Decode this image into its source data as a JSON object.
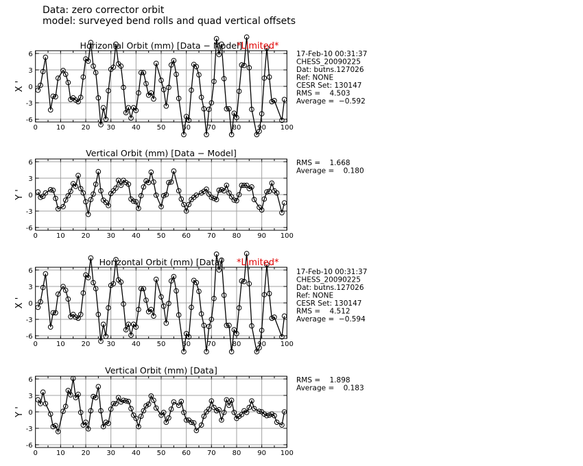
{
  "header": {
    "line1": "Data: zero corrector orbit",
    "line2": "model: surveyed bend rolls and quad vertical offsets"
  },
  "colors": {
    "line": "#000000",
    "grid": "#a0a0a0",
    "limited": "#e00000"
  },
  "chart_data": [
    {
      "type": "line",
      "title": "Horizontal Orbit (mm) [Data − Model]",
      "flag": "*Limited*",
      "ylabel": "X '",
      "xlim": [
        0,
        100
      ],
      "ylim": [
        -6.5,
        6.5
      ],
      "xticks": [
        "0",
        "10",
        "20",
        "30",
        "40",
        "50",
        "60",
        "70",
        "80",
        "90",
        "100"
      ],
      "yticks": [
        "-6",
        "-3",
        "0",
        "3",
        "6"
      ],
      "grid": true,
      "info": [
        "17-Feb-10 00:31:37",
        "CHESS_20090225",
        "Dat: butns.127026",
        "Ref: NONE",
        "CESR Set: 130147",
        "RMS =    4.503",
        "Average =  −0.592"
      ],
      "x": [
        1,
        2,
        3,
        4,
        6,
        7,
        8,
        9,
        11,
        12,
        13,
        14,
        15,
        16,
        17,
        18,
        19,
        20,
        21,
        22,
        23,
        24,
        25,
        26,
        27,
        28,
        29,
        30,
        31,
        32,
        33,
        34,
        35,
        36,
        37,
        38,
        39,
        40,
        41,
        42,
        43,
        44,
        45,
        46,
        47,
        48,
        50,
        51,
        52,
        53,
        54,
        55,
        56,
        57,
        59,
        60,
        61,
        62,
        63,
        64,
        65,
        66,
        67,
        68,
        69,
        70,
        71,
        72,
        73,
        74,
        75,
        76,
        77,
        78,
        79,
        80,
        81,
        82,
        83,
        84,
        85,
        86,
        88,
        89,
        90,
        91,
        92,
        93,
        94,
        95,
        98,
        99
      ],
      "y": [
        -0.7,
        0.2,
        2.7,
        5.3,
        -4.3,
        -1.8,
        -1.9,
        1.5,
        2.9,
        2.2,
        0.7,
        -2.4,
        -2.1,
        -2.5,
        -2.8,
        -2.0,
        1.7,
        5.0,
        4.6,
        8.0,
        3.7,
        2.5,
        -2.1,
        -7.0,
        -3.9,
        -6.0,
        -0.8,
        3.1,
        3.5,
        7.7,
        4.1,
        3.7,
        -0.2,
        -4.8,
        -3.9,
        -5.8,
        -3.9,
        -4.4,
        -1.2,
        2.5,
        2.5,
        0.5,
        -1.6,
        -1.2,
        -2.3,
        4.2,
        1.1,
        -0.6,
        -3.6,
        -0.2,
        3.9,
        4.7,
        2.2,
        -2.2,
        -8.8,
        -5.5,
        -6.2,
        -0.7,
        4.0,
        3.6,
        2.1,
        -2.0,
        -4.1,
        -8.8,
        -4.2,
        -3.0,
        0.9,
        8.7,
        5.8,
        7.7,
        1.4,
        -4.1,
        -4.1,
        -8.8,
        -4.9,
        -5.7,
        -0.9,
        3.9,
        3.8,
        9.0,
        3.4,
        -4.2,
        -8.8,
        -8.2,
        -5.0,
        1.5,
        7.0,
        1.7,
        -2.8,
        -2.6,
        -6.2,
        -2.4
      ]
    },
    {
      "type": "line",
      "title": "Vertical Orbit (mm) [Data − Model]",
      "flag": "",
      "ylabel": "Y '",
      "xlim": [
        0,
        100
      ],
      "ylim": [
        -6.5,
        6.5
      ],
      "xticks": [
        "0",
        "10",
        "20",
        "30",
        "40",
        "50",
        "60",
        "70",
        "80",
        "90",
        "100"
      ],
      "yticks": [
        "-6",
        "-3",
        "0",
        "3",
        "6"
      ],
      "grid": true,
      "info": [
        "RMS =    1.668",
        "Average =    0.180"
      ],
      "x": [
        1,
        2,
        3,
        4,
        6,
        7,
        8,
        9,
        11,
        12,
        13,
        14,
        15,
        16,
        17,
        18,
        19,
        20,
        21,
        22,
        23,
        24,
        25,
        26,
        27,
        28,
        29,
        30,
        31,
        32,
        33,
        34,
        35,
        36,
        37,
        38,
        39,
        40,
        41,
        42,
        43,
        44,
        45,
        46,
        47,
        48,
        50,
        51,
        52,
        53,
        54,
        55,
        57,
        58,
        59,
        60,
        61,
        62,
        63,
        64,
        66,
        67,
        68,
        69,
        70,
        71,
        72,
        73,
        74,
        75,
        76,
        77,
        78,
        79,
        80,
        81,
        82,
        83,
        84,
        85,
        86,
        87,
        89,
        90,
        91,
        92,
        93,
        94,
        95,
        96,
        98,
        99
      ],
      "y": [
        0.5,
        -0.5,
        -0.3,
        0.3,
        0.9,
        0.8,
        -0.7,
        -2.6,
        -2.2,
        -1.0,
        -0.2,
        0.6,
        2.0,
        1.5,
        3.5,
        1.1,
        0.3,
        -1.3,
        -3.6,
        -0.9,
        0.1,
        1.9,
        4.2,
        0.7,
        -1.0,
        -1.4,
        -2.0,
        0.2,
        0.7,
        1.2,
        2.6,
        1.7,
        2.6,
        2.2,
        1.9,
        -0.8,
        -1.2,
        -1.3,
        -2.5,
        -0.2,
        1.4,
        2.5,
        2.2,
        4.1,
        2.3,
        -0.1,
        -2.2,
        -0.2,
        0.0,
        2.2,
        2.3,
        4.3,
        0.7,
        -0.8,
        -1.8,
        -3.0,
        -1.8,
        -0.9,
        -0.5,
        -0.1,
        0.3,
        0.6,
        1.0,
        0.1,
        -0.5,
        -0.7,
        -0.9,
        0.8,
        0.9,
        0.7,
        1.7,
        0.3,
        -0.4,
        -1.0,
        -1.1,
        0.0,
        1.7,
        1.7,
        1.7,
        1.1,
        1.4,
        -0.9,
        -2.3,
        -2.8,
        -0.8,
        0.5,
        0.6,
        2.1,
        0.7,
        0.3,
        -3.3,
        -1.5
      ]
    },
    {
      "type": "line",
      "title": "Horizontal Orbit (mm) [Data]",
      "flag": "*Limited*",
      "ylabel": "X '",
      "xlim": [
        0,
        100
      ],
      "ylim": [
        -6.5,
        6.5
      ],
      "xticks": [
        "0",
        "10",
        "20",
        "30",
        "40",
        "50",
        "60",
        "70",
        "80",
        "90",
        "100"
      ],
      "yticks": [
        "-6",
        "-3",
        "0",
        "3",
        "6"
      ],
      "grid": true,
      "info": [
        "17-Feb-10 00:31:37",
        "CHESS_20090225",
        "Dat: butns.127026",
        "Ref: NONE",
        "CESR Set: 130147",
        "RMS =    4.512",
        "Average =  −0.594"
      ],
      "x": [
        1,
        2,
        3,
        4,
        6,
        7,
        8,
        9,
        11,
        12,
        13,
        14,
        15,
        16,
        17,
        18,
        19,
        20,
        21,
        22,
        23,
        24,
        25,
        26,
        27,
        28,
        29,
        30,
        31,
        32,
        33,
        34,
        35,
        36,
        37,
        38,
        39,
        40,
        41,
        42,
        43,
        44,
        45,
        46,
        47,
        48,
        50,
        51,
        52,
        53,
        54,
        55,
        56,
        57,
        59,
        60,
        61,
        62,
        63,
        64,
        65,
        66,
        67,
        68,
        69,
        70,
        71,
        72,
        73,
        74,
        75,
        76,
        77,
        78,
        79,
        80,
        81,
        82,
        83,
        84,
        85,
        86,
        88,
        89,
        90,
        91,
        92,
        93,
        94,
        95,
        98,
        99
      ],
      "y": [
        -0.8,
        0.2,
        2.8,
        5.3,
        -4.4,
        -1.8,
        -1.8,
        1.6,
        3.0,
        2.3,
        0.7,
        -2.5,
        -2.1,
        -2.6,
        -2.8,
        -2.1,
        1.8,
        5.1,
        4.6,
        8.2,
        3.7,
        2.6,
        -2.1,
        -7.0,
        -3.9,
        -6.1,
        -0.9,
        3.2,
        3.5,
        7.9,
        4.2,
        3.8,
        -0.2,
        -4.9,
        -3.9,
        -5.9,
        -3.9,
        -4.4,
        -1.2,
        2.6,
        2.6,
        0.5,
        -1.6,
        -1.2,
        -2.4,
        4.3,
        1.1,
        -0.6,
        -3.7,
        -0.1,
        4.0,
        4.8,
        2.2,
        -2.2,
        -8.9,
        -5.6,
        -6.2,
        -0.8,
        4.1,
        3.7,
        2.1,
        -2.0,
        -4.1,
        -8.9,
        -4.3,
        -3.0,
        0.8,
        8.9,
        6.0,
        7.8,
        1.4,
        -4.1,
        -4.1,
        -8.9,
        -4.9,
        -5.6,
        -0.9,
        4.0,
        3.9,
        9.0,
        3.5,
        -4.2,
        -8.9,
        -8.2,
        -5.0,
        1.5,
        7.0,
        1.7,
        -2.8,
        -2.6,
        -6.2,
        -2.4
      ]
    },
    {
      "type": "line",
      "title": "Vertical Orbit (mm) [Data]",
      "flag": "",
      "ylabel": "Y '",
      "xlim": [
        0,
        100
      ],
      "ylim": [
        -6.5,
        6.5
      ],
      "xticks": [
        "0",
        "10",
        "20",
        "30",
        "40",
        "50",
        "60",
        "70",
        "80",
        "90",
        "100"
      ],
      "yticks": [
        "-6",
        "-3",
        "0",
        "3",
        "6"
      ],
      "grid": true,
      "info": [
        "RMS =    1.898",
        "Average =    0.183"
      ],
      "x": [
        1,
        2,
        3,
        4,
        6,
        7,
        8,
        9,
        11,
        12,
        13,
        14,
        15,
        16,
        17,
        18,
        19,
        20,
        21,
        22,
        23,
        24,
        25,
        26,
        27,
        28,
        29,
        30,
        31,
        32,
        33,
        34,
        35,
        36,
        37,
        38,
        39,
        40,
        41,
        42,
        43,
        44,
        45,
        46,
        47,
        48,
        50,
        51,
        52,
        53,
        54,
        55,
        57,
        58,
        59,
        60,
        61,
        62,
        63,
        64,
        66,
        67,
        68,
        69,
        70,
        71,
        72,
        73,
        74,
        75,
        76,
        77,
        78,
        79,
        80,
        81,
        82,
        83,
        84,
        85,
        86,
        87,
        89,
        90,
        91,
        92,
        93,
        94,
        95,
        96,
        98,
        99
      ],
      "y": [
        2.2,
        1.5,
        3.6,
        1.5,
        -0.4,
        -2.7,
        -2.5,
        -3.6,
        0.1,
        1.0,
        3.9,
        3.1,
        6.1,
        2.6,
        3.2,
        -0.1,
        -2.4,
        -1.9,
        -3.1,
        0.2,
        2.8,
        2.6,
        4.6,
        0.2,
        -2.7,
        -1.9,
        -2.1,
        0.5,
        1.5,
        1.5,
        2.6,
        1.8,
        2.1,
        2.0,
        1.9,
        0.6,
        -0.6,
        -1.2,
        -2.7,
        -0.8,
        0.2,
        1.1,
        1.4,
        2.9,
        2.1,
        0.7,
        -0.6,
        -0.1,
        -1.9,
        -1.1,
        0.5,
        1.8,
        1.2,
        1.9,
        -0.1,
        -1.5,
        -1.5,
        -1.9,
        -2.0,
        -3.4,
        -2.4,
        -0.8,
        0.0,
        0.5,
        2.0,
        0.8,
        0.2,
        0.4,
        -1.5,
        -0.1,
        2.2,
        1.2,
        2.1,
        -0.1,
        -1.2,
        -0.8,
        -0.5,
        0.2,
        -0.1,
        0.8,
        2.0,
        0.6,
        0.1,
        0.0,
        -0.4,
        -0.7,
        -0.6,
        -0.4,
        -0.7,
        -1.9,
        -2.4,
        0.0
      ]
    }
  ]
}
